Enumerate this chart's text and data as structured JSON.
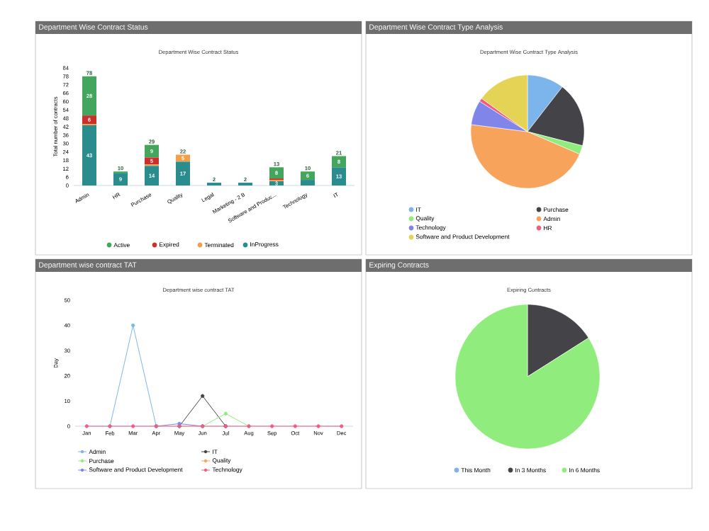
{
  "chart_data": [
    {
      "type": "bar",
      "stacked": true,
      "title": "Department Wise Contract Status",
      "subtitle": "Department Wise Contract Status",
      "ylabel": "Total number of contracts",
      "categories": [
        "Admin",
        "HR",
        "Purchase",
        "Quality",
        "Legal",
        "Marketing - 2 B",
        "Software and Produc...",
        "Technology",
        "IT"
      ],
      "ylim": [
        0,
        84
      ],
      "yticks": [
        0,
        6,
        12,
        18,
        24,
        30,
        36,
        42,
        48,
        54,
        60,
        66,
        72,
        78,
        84
      ],
      "legend": "bottom",
      "series": [
        {
          "name": "InProgress",
          "color": "#2a8c8c",
          "values": [
            43,
            9,
            14,
            17,
            2,
            2,
            3,
            4,
            13
          ],
          "value_labels": [
            "43",
            "9",
            "14",
            "17",
            null,
            null,
            "3",
            null,
            "13"
          ]
        },
        {
          "name": "Terminated",
          "color": "#f0a04b",
          "values": [
            1,
            0,
            1,
            5,
            0,
            0,
            1,
            0,
            0
          ],
          "value_labels": [
            null,
            null,
            null,
            "5",
            null,
            null,
            null,
            null,
            null
          ]
        },
        {
          "name": "Expired",
          "color": "#c9302c",
          "values": [
            6,
            0,
            5,
            0,
            0,
            0,
            1,
            0,
            0
          ],
          "value_labels": [
            "6",
            null,
            "5",
            null,
            null,
            null,
            null,
            null,
            null
          ]
        },
        {
          "name": "Active",
          "color": "#44a55c",
          "values": [
            28,
            1,
            9,
            0,
            0,
            0,
            8,
            6,
            8
          ],
          "value_labels": [
            "28",
            null,
            "9",
            null,
            null,
            null,
            "8",
            "6",
            "8"
          ]
        }
      ],
      "totals": [
        "78",
        "10",
        "29",
        "22",
        "2",
        "2",
        "13",
        "10",
        "21"
      ]
    },
    {
      "type": "pie",
      "title": "Department Wise Contract Type Analysis",
      "subtitle": "Department Wise Contract Type Analysis",
      "categories": [
        "IT",
        "Purchase",
        "Quality",
        "Admin",
        "Technology",
        "HR",
        "Software and Product Development"
      ],
      "values": [
        10.5,
        18.5,
        2.5,
        45.5,
        7,
        1,
        15
      ],
      "colors": [
        "#7cb5ec",
        "#434348",
        "#90ed7d",
        "#f7a35c",
        "#8085e9",
        "#f15c80",
        "#e4d354"
      ],
      "legend": "bottom"
    },
    {
      "type": "line",
      "title": "Department wise contract TAT",
      "subtitle": "Department wise contract TAT",
      "ylabel": "Day",
      "categories": [
        "Jan",
        "Feb",
        "Mar",
        "Apr",
        "May",
        "Jun",
        "Jul",
        "Aug",
        "Sep",
        "Oct",
        "Nov",
        "Dec"
      ],
      "ylim": [
        0,
        50
      ],
      "yticks": [
        0,
        10,
        20,
        30,
        40,
        50
      ],
      "marker": "circle",
      "legend": "bottom",
      "series": [
        {
          "name": "Admin",
          "color": "#7cb5ec",
          "values": [
            null,
            0,
            40,
            0,
            null,
            null,
            null,
            null,
            null,
            null,
            null,
            null
          ]
        },
        {
          "name": "IT",
          "color": "#434348",
          "values": [
            null,
            null,
            null,
            null,
            0,
            12,
            0,
            null,
            null,
            null,
            null,
            null
          ]
        },
        {
          "name": "Purchase",
          "color": "#90ed7d",
          "values": [
            null,
            null,
            null,
            null,
            null,
            0,
            5,
            0,
            null,
            null,
            null,
            null
          ]
        },
        {
          "name": "Quality",
          "color": "#f7a35c",
          "values": [
            null,
            null,
            null,
            null,
            null,
            null,
            null,
            null,
            null,
            null,
            null,
            null
          ]
        },
        {
          "name": "Software and Product Development",
          "color": "#8085e9",
          "values": [
            null,
            null,
            null,
            0,
            1,
            0,
            null,
            null,
            null,
            null,
            null,
            null
          ]
        },
        {
          "name": "Technology",
          "color": "#f15c80",
          "values": [
            0,
            0,
            0,
            0,
            0,
            0,
            0,
            0,
            0,
            0,
            0,
            0
          ]
        }
      ]
    },
    {
      "type": "pie",
      "title": "Expiring Contracts",
      "subtitle": "Expiring Contracts",
      "categories": [
        "This Month",
        "In 3 Months",
        "In 6 Months"
      ],
      "values": [
        0,
        16,
        84
      ],
      "colors": [
        "#7cb5ec",
        "#434348",
        "#90ed7d"
      ],
      "legend": "bottom"
    }
  ]
}
